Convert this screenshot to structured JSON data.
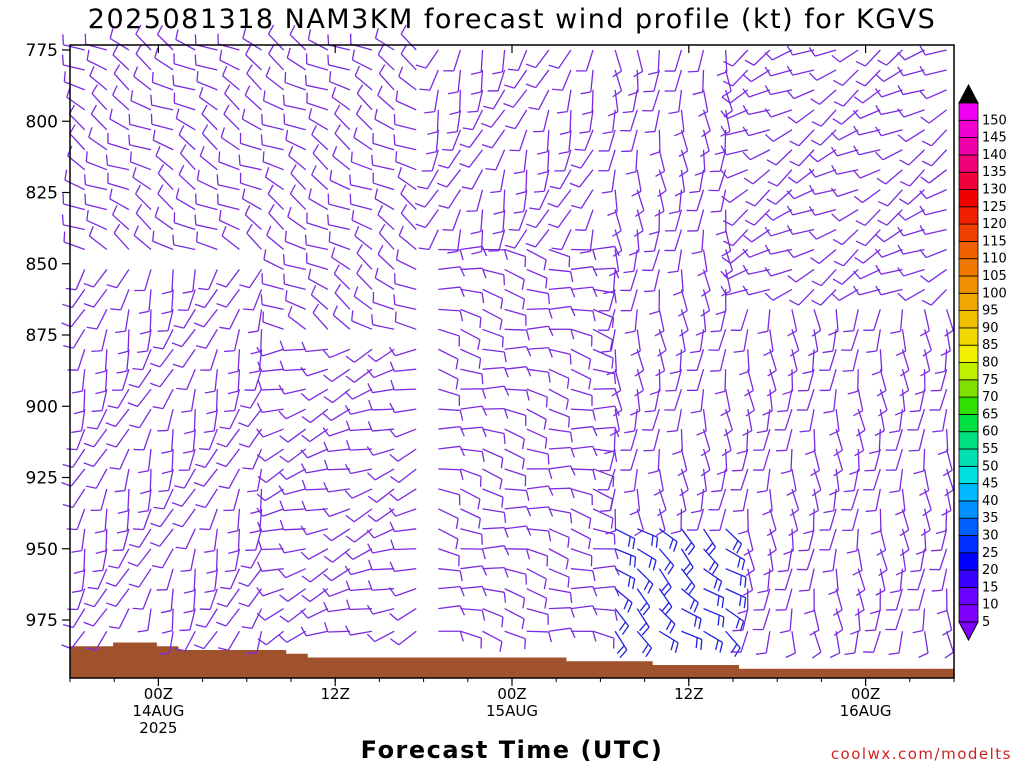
{
  "chart_data": {
    "type": "wind_barb_time_height",
    "title": "2025081318 NAM3KM forecast wind profile (kt) for KGVS",
    "xlabel": "Forecast Time (UTC)",
    "ylabel": "",
    "y_axis": {
      "ticks": [
        "775",
        "800",
        "825",
        "850",
        "875",
        "900",
        "925",
        "950",
        "975"
      ],
      "range_hpa": [
        775,
        995
      ],
      "inverted": true
    },
    "x_axis": {
      "ticks": [
        {
          "line1": "00Z",
          "line2": "14AUG",
          "line3": "2025",
          "hour_offset": 6
        },
        {
          "line1": "12Z",
          "line2": "",
          "line3": "",
          "hour_offset": 18
        },
        {
          "line1": "00Z",
          "line2": "15AUG",
          "line3": "",
          "hour_offset": 30
        },
        {
          "line1": "12Z",
          "line2": "",
          "line3": "",
          "hour_offset": 42
        },
        {
          "line1": "00Z",
          "line2": "16AUG",
          "line3": "",
          "hour_offset": 54
        }
      ],
      "range_hours": [
        0,
        60
      ],
      "init": "2025081318"
    },
    "barb_color": "#7a2be0",
    "terrain_color": "#a0522d",
    "terrain_hpa": [
      982,
      982,
      981,
      981,
      982,
      983,
      983,
      983,
      983,
      983,
      984,
      985,
      985,
      985,
      985,
      985,
      985,
      985,
      985,
      985,
      985,
      985,
      985,
      986,
      986,
      986,
      986,
      987,
      987,
      987,
      987,
      988,
      988,
      988,
      988,
      988,
      988,
      988,
      988,
      988,
      988
    ],
    "wind_regimes": [
      {
        "hours": [
          0,
          14
        ],
        "levels_hpa": [
          775,
          850
        ],
        "dir_deg": 300,
        "speed_kt": 10
      },
      {
        "hours": [
          0,
          14
        ],
        "levels_hpa": [
          850,
          980
        ],
        "dir_deg": 200,
        "speed_kt": 10
      },
      {
        "hours": [
          14,
          24
        ],
        "levels_hpa": [
          775,
          880
        ],
        "dir_deg": 300,
        "speed_kt": 10
      },
      {
        "hours": [
          14,
          24
        ],
        "levels_hpa": [
          880,
          980
        ],
        "dir_deg": 250,
        "speed_kt": 10
      },
      {
        "hours": [
          24,
          36
        ],
        "levels_hpa": [
          775,
          840
        ],
        "dir_deg": 200,
        "speed_kt": 10
      },
      {
        "hours": [
          24,
          36
        ],
        "levels_hpa": [
          840,
          985
        ],
        "dir_deg": 100,
        "speed_kt": 10
      },
      {
        "hours": [
          36,
          46
        ],
        "levels_hpa": [
          775,
          940
        ],
        "dir_deg": 180,
        "speed_kt": 10
      },
      {
        "hours": [
          36,
          46
        ],
        "levels_hpa": [
          940,
          985
        ],
        "dir_deg": 130,
        "speed_kt": 15
      },
      {
        "hours": [
          46,
          60
        ],
        "levels_hpa": [
          775,
          860
        ],
        "dir_deg": 240,
        "speed_kt": 10
      },
      {
        "hours": [
          46,
          60
        ],
        "levels_hpa": [
          860,
          988
        ],
        "dir_deg": 180,
        "speed_kt": 10
      }
    ],
    "colorbar": {
      "labels": [
        "5",
        "10",
        "15",
        "20",
        "25",
        "30",
        "35",
        "40",
        "45",
        "50",
        "55",
        "60",
        "65",
        "70",
        "75",
        "80",
        "85",
        "90",
        "95",
        "100",
        "105",
        "110",
        "115",
        "120",
        "125",
        "130",
        "135",
        "140",
        "145",
        "150"
      ],
      "colors": [
        "#8000ff",
        "#6a00ff",
        "#3a00ff",
        "#0000ff",
        "#0030ff",
        "#0060ff",
        "#0090ff",
        "#00b8ff",
        "#00e0e0",
        "#00e0b0",
        "#00e080",
        "#00e040",
        "#30e000",
        "#80e000",
        "#c0f000",
        "#f0f000",
        "#f0d800",
        "#f0c000",
        "#f0a800",
        "#f09000",
        "#f07800",
        "#f06000",
        "#f04000",
        "#f02000",
        "#f00000",
        "#f0003c",
        "#f00078",
        "#f000a8",
        "#f000d0",
        "#f000f0"
      ]
    },
    "grid": false,
    "legend": "right"
  },
  "credit": "coolwx.com/modelts"
}
